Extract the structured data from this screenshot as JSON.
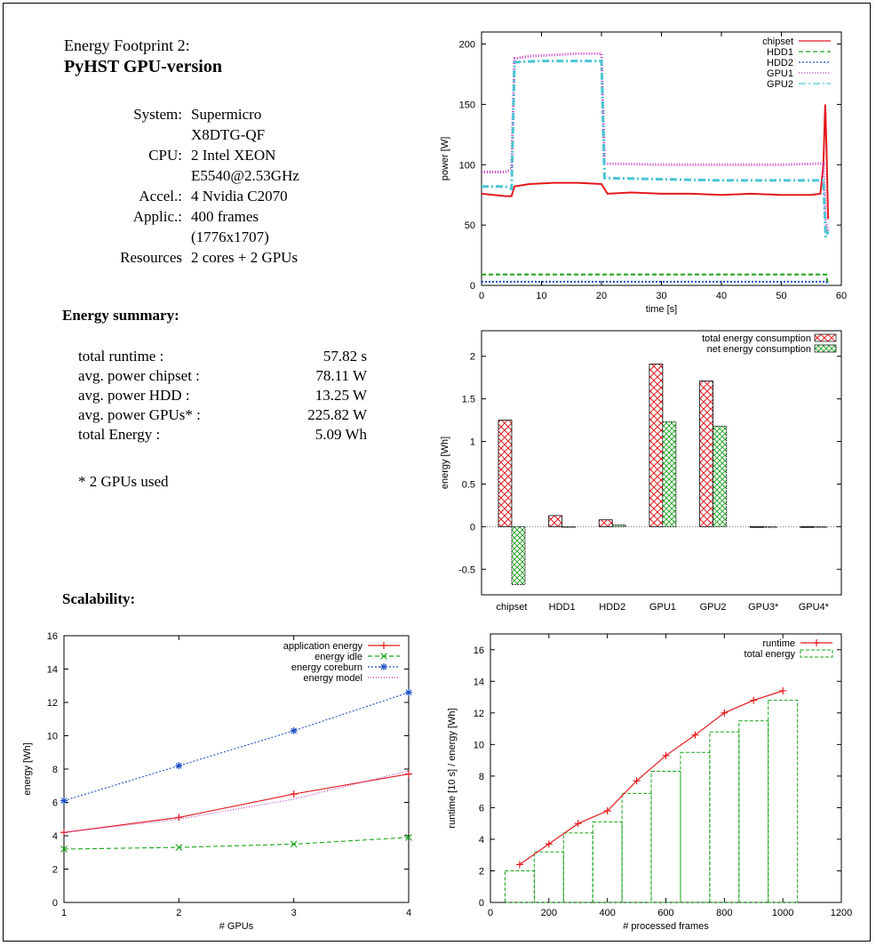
{
  "header": {
    "subtitle": "Energy Footprint 2:",
    "title": "PyHST GPU-version"
  },
  "specs": [
    {
      "key": "System:",
      "lines": [
        "Supermicro",
        "X8DTG-QF"
      ]
    },
    {
      "key": "CPU:",
      "lines": [
        "2 Intel XEON",
        "E5540@2.53GHz"
      ]
    },
    {
      "key": "Accel.:",
      "lines": [
        "4 Nvidia C2070"
      ]
    },
    {
      "key": "Applic.:",
      "lines": [
        "400 frames",
        "(1776x1707)"
      ]
    },
    {
      "key": "Resources",
      "lines": [
        "2 cores + 2 GPUs"
      ]
    }
  ],
  "energy_summary": {
    "heading": "Energy summary:",
    "rows": [
      {
        "label": "total runtime :",
        "value": "57.82 s"
      },
      {
        "label": "avg. power chipset :",
        "value": "78.11 W"
      },
      {
        "label": "avg. power HDD :",
        "value": "13.25 W"
      },
      {
        "label": "avg. power GPUs* :",
        "value": "225.82 W"
      },
      {
        "label": "total Energy :",
        "value": "5.09 Wh"
      }
    ],
    "footnote": "* 2 GPUs used"
  },
  "scalability": {
    "heading": "Scalability:"
  },
  "chart_data": [
    {
      "id": "power",
      "type": "line",
      "xlabel": "time [s]",
      "ylabel": "power [W]",
      "xlim": [
        0,
        60
      ],
      "ylim": [
        0,
        210
      ],
      "xticks": [
        0,
        10,
        20,
        30,
        40,
        50,
        60
      ],
      "yticks": [
        0,
        50,
        100,
        150,
        200
      ],
      "legend_position": "top-right",
      "series": [
        {
          "name": "chipset",
          "color": "#e31a1c",
          "dash": "",
          "points": [
            [
              0,
              76
            ],
            [
              2,
              75
            ],
            [
              4,
              74
            ],
            [
              5,
              74
            ],
            [
              5.5,
              82
            ],
            [
              8,
              84
            ],
            [
              12,
              85
            ],
            [
              16,
              85
            ],
            [
              20,
              84
            ],
            [
              21,
              76
            ],
            [
              25,
              77
            ],
            [
              30,
              76
            ],
            [
              35,
              76
            ],
            [
              40,
              75
            ],
            [
              45,
              76
            ],
            [
              50,
              75
            ],
            [
              55,
              75
            ],
            [
              56.5,
              76
            ],
            [
              57,
              100
            ],
            [
              57.3,
              150
            ],
            [
              57.5,
              120
            ],
            [
              57.8,
              55
            ]
          ]
        },
        {
          "name": "HDD1",
          "color": "#1aa31a",
          "dash": "5,3",
          "points": [
            [
              0,
              9
            ],
            [
              10,
              9
            ],
            [
              20,
              9
            ],
            [
              30,
              9
            ],
            [
              40,
              9
            ],
            [
              50,
              9
            ],
            [
              57.5,
              9
            ],
            [
              57.8,
              0
            ]
          ]
        },
        {
          "name": "HDD2",
          "color": "#1c4fc4",
          "dash": "2,2",
          "points": [
            [
              0,
              3
            ],
            [
              10,
              3
            ],
            [
              20,
              3
            ],
            [
              30,
              3
            ],
            [
              40,
              3
            ],
            [
              50,
              3
            ],
            [
              57.5,
              3
            ],
            [
              57.8,
              0
            ]
          ]
        },
        {
          "name": "GPU1",
          "color": "#c02ec0",
          "dash": "1,2",
          "points": [
            [
              0,
              94
            ],
            [
              4,
              94
            ],
            [
              5,
              96
            ],
            [
              5.5,
              188
            ],
            [
              8,
              190
            ],
            [
              12,
              191
            ],
            [
              16,
              192
            ],
            [
              20,
              192
            ],
            [
              20.5,
              101
            ],
            [
              30,
              100
            ],
            [
              40,
              100
            ],
            [
              50,
              100
            ],
            [
              57,
              101
            ],
            [
              57.4,
              52
            ],
            [
              57.8,
              45
            ]
          ]
        },
        {
          "name": "GPU2",
          "color": "#4bc4d4",
          "dash": "8,3,2,3",
          "points": [
            [
              0,
              82
            ],
            [
              4,
              82
            ],
            [
              5,
              80
            ],
            [
              5.5,
              185
            ],
            [
              10,
              186
            ],
            [
              15,
              186
            ],
            [
              20,
              186
            ],
            [
              20.5,
              89
            ],
            [
              30,
              88
            ],
            [
              40,
              87
            ],
            [
              50,
              87
            ],
            [
              57,
              87
            ],
            [
              57.4,
              40
            ],
            [
              57.8,
              45
            ]
          ]
        }
      ]
    },
    {
      "id": "energy-bars",
      "type": "bar",
      "xlabel": "",
      "ylabel": "energy [Wh]",
      "ylim": [
        -0.8,
        2.3
      ],
      "yticks": [
        -0.5,
        0,
        0.5,
        1,
        1.5,
        2
      ],
      "ytick_labels": [
        "-0.5",
        "0",
        "0.5",
        "1",
        "1.5",
        "2"
      ],
      "categories": [
        "chipset",
        "HDD1",
        "HDD2",
        "GPU1",
        "GPU2",
        "GPU3*",
        "GPU4*"
      ],
      "legend_position": "top-right",
      "series": [
        {
          "name": "total energy consumption",
          "color": "#e31a1c",
          "values": [
            1.25,
            0.13,
            0.08,
            1.91,
            1.71,
            0,
            0
          ]
        },
        {
          "name": "net energy consumption",
          "color": "#1aa31a",
          "values": [
            -0.68,
            0.0,
            0.02,
            1.23,
            1.18,
            0,
            0
          ]
        }
      ]
    },
    {
      "id": "scalability",
      "type": "line",
      "xlabel": "# GPUs",
      "ylabel": "energy [Wh]",
      "xlim": [
        1,
        4
      ],
      "ylim": [
        0,
        16
      ],
      "xticks": [
        1,
        2,
        3,
        4
      ],
      "yticks": [
        0,
        2,
        4,
        6,
        8,
        10,
        12,
        14,
        16
      ],
      "legend_position": "top-right",
      "series": [
        {
          "name": "application energy",
          "color": "#e31a1c",
          "dash": "",
          "marker": "+",
          "x": [
            1,
            2,
            3,
            4
          ],
          "y": [
            4.2,
            5.1,
            6.5,
            7.7
          ]
        },
        {
          "name": "energy idle",
          "color": "#1aa31a",
          "dash": "5,3",
          "marker": "x",
          "x": [
            1,
            2,
            3,
            4
          ],
          "y": [
            3.2,
            3.3,
            3.5,
            3.9
          ]
        },
        {
          "name": "energy coreburn",
          "color": "#1c4fc4",
          "dash": "2,2",
          "marker": "*",
          "x": [
            1,
            2,
            3,
            4
          ],
          "y": [
            6.1,
            8.2,
            10.3,
            12.6
          ]
        },
        {
          "name": "energy model",
          "color": "#c02ec0",
          "dash": "1,2",
          "marker": "",
          "x": [
            1,
            2,
            3,
            4
          ],
          "y": [
            4.2,
            5.0,
            6.2,
            7.9
          ]
        }
      ]
    },
    {
      "id": "runtime",
      "type": "line",
      "xlabel": "# processed frames",
      "ylabel": "runtime [10 s] / energy [Wh]",
      "xlim": [
        0,
        1200
      ],
      "ylim": [
        0,
        17
      ],
      "xticks": [
        0,
        200,
        400,
        600,
        800,
        1000,
        1200
      ],
      "yticks": [
        0,
        2,
        4,
        6,
        8,
        10,
        12,
        14,
        16
      ],
      "legend_position": "top-right",
      "series": [
        {
          "name": "runtime",
          "color": "#e31a1c",
          "type": "line",
          "marker": "+",
          "x": [
            100,
            200,
            300,
            400,
            500,
            600,
            700,
            800,
            900,
            1000
          ],
          "y": [
            2.4,
            3.7,
            5.0,
            5.8,
            7.7,
            9.3,
            10.6,
            12.0,
            12.8,
            13.4
          ]
        },
        {
          "name": "total energy",
          "color": "#1aa31a",
          "type": "bar",
          "bar_width": 100,
          "x": [
            100,
            200,
            300,
            400,
            500,
            600,
            700,
            800,
            900,
            1000
          ],
          "y": [
            2.0,
            3.2,
            4.4,
            5.1,
            6.9,
            8.3,
            9.5,
            10.8,
            11.5,
            12.8
          ]
        }
      ]
    }
  ]
}
